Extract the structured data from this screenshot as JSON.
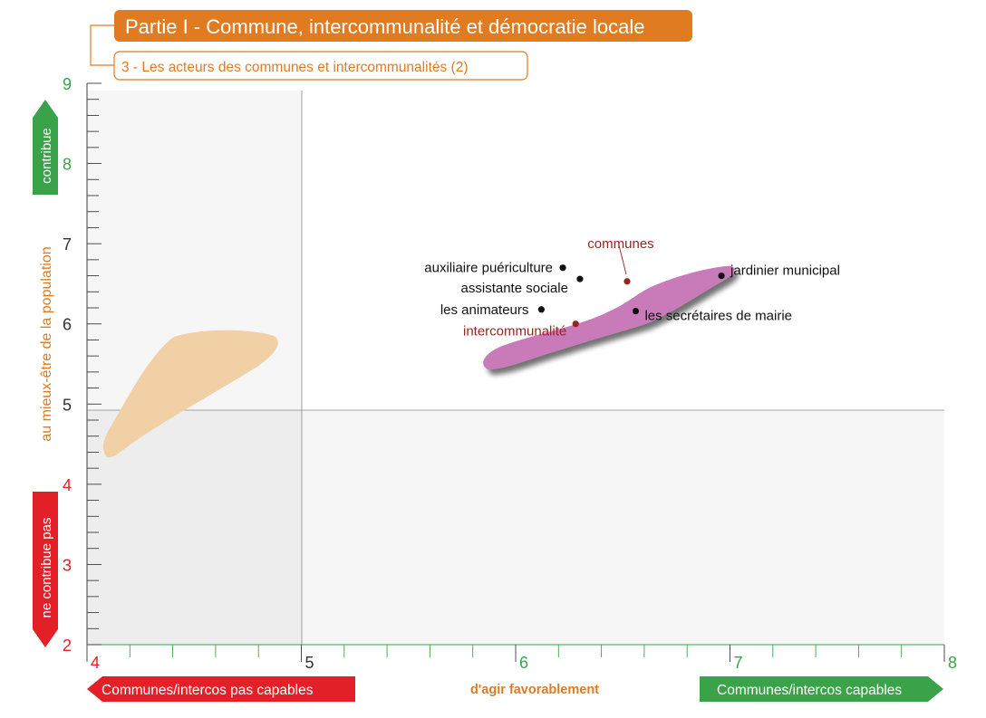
{
  "header": {
    "title": "Partie I - Commune, intercommunalité et démocratie locale",
    "subtitle": "3 - Les acteurs des communes et intercommunalités (2)"
  },
  "colors": {
    "orange": "#e07b22",
    "green": "#3aa34a",
    "red": "#e32028",
    "dark_red": "#9a2420",
    "purple_blob": "#c97ab8",
    "peach_blob": "#f2d0a6",
    "shade": "#f2f0f0",
    "dot": "#111111"
  },
  "y_axis": {
    "label": "au mieux-être de la population",
    "top_tag": "contribue",
    "bottom_tag": "ne contribue pas"
  },
  "x_axis": {
    "label": "d'agir favorablement",
    "left_tag": "Communes/intercos pas capables",
    "right_tag": "Communes/intercos capables"
  },
  "chart_data": {
    "type": "scatter",
    "xlim": [
      4,
      8
    ],
    "ylim": [
      2,
      9
    ],
    "x_ticks": [
      4,
      5,
      6,
      7,
      8
    ],
    "y_ticks": [
      2,
      3,
      4,
      5,
      6,
      7,
      8,
      9
    ],
    "x_divider": 5,
    "y_divider": 4.8,
    "grid": false,
    "points": [
      {
        "label": "auxiliaire puériculture",
        "x": 6.22,
        "y": 6.7,
        "color": "black"
      },
      {
        "label": "assistante sociale",
        "x": 6.3,
        "y": 6.56,
        "color": "black"
      },
      {
        "label": "les animateurs",
        "x": 6.12,
        "y": 6.18,
        "color": "black"
      },
      {
        "label": "jardinier municipal",
        "x": 6.96,
        "y": 6.6,
        "color": "black"
      },
      {
        "label": "les secrétaires de mairie",
        "x": 6.56,
        "y": 6.16,
        "color": "black"
      },
      {
        "label": "communes",
        "x": 6.52,
        "y": 6.53,
        "color": "dark-red"
      },
      {
        "label": "intercommunalité",
        "x": 6.28,
        "y": 6.0,
        "color": "dark-red"
      }
    ]
  }
}
